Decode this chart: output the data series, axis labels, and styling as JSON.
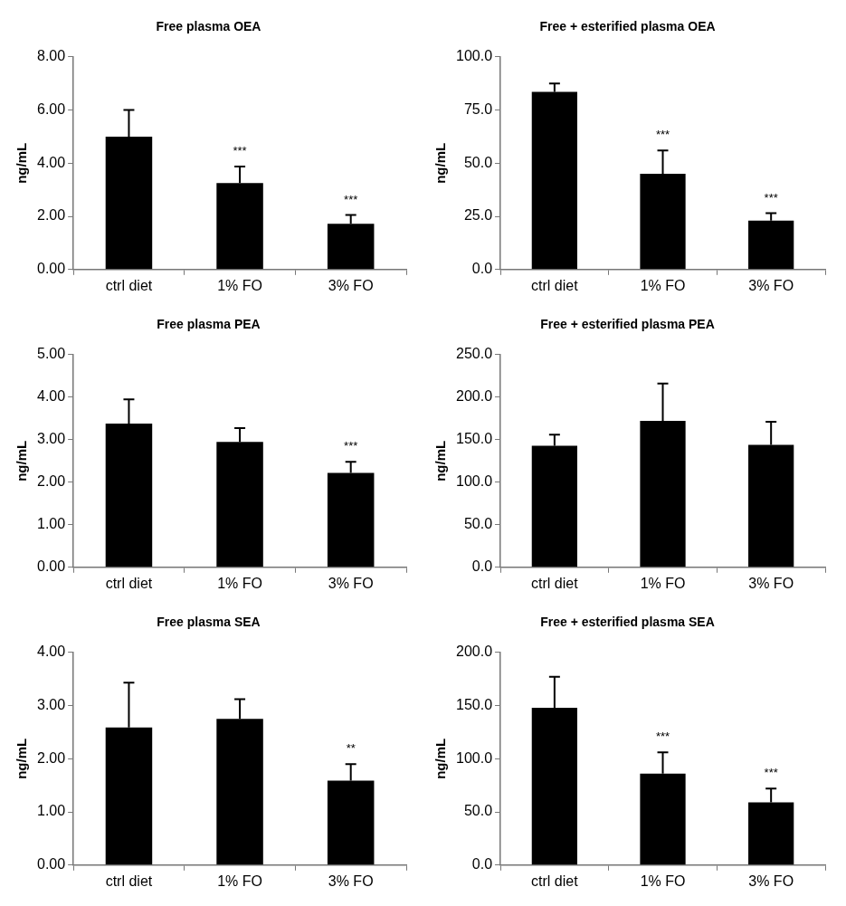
{
  "chart_data": [
    {
      "type": "bar",
      "title": "Free plasma OEA",
      "ylabel": "ng/mL",
      "categories": [
        "ctrl diet",
        "1% FO",
        "3% FO"
      ],
      "values": [
        5.0,
        3.25,
        1.72
      ],
      "errors": [
        [
          5.0,
          6.0
        ],
        [
          3.25,
          3.87
        ],
        [
          1.72,
          2.05
        ]
      ],
      "value_labels": [
        null,
        "***",
        "***"
      ],
      "color": "#000000",
      "ylim": [
        0,
        8
      ],
      "yticks": [
        {
          "value": 0,
          "label": "0.00"
        },
        {
          "value": 2,
          "label": "2.00"
        },
        {
          "value": 4,
          "label": "4.00"
        },
        {
          "value": 6,
          "label": "6.00"
        },
        {
          "value": 8,
          "label": "8.00"
        }
      ],
      "grid": false,
      "legend": false
    },
    {
      "type": "bar",
      "title": "Free + esterified plasma OEA",
      "ylabel": "ng/mL",
      "categories": [
        "ctrl diet",
        "1% FO",
        "3% FO"
      ],
      "values": [
        83.5,
        45,
        23
      ],
      "errors": [
        [
          83.5,
          87.5
        ],
        [
          45,
          56
        ],
        [
          23,
          26.5
        ]
      ],
      "value_labels": [
        null,
        "***",
        "***"
      ],
      "color": "#000000",
      "ylim": [
        0,
        100
      ],
      "yticks": [
        {
          "value": 0,
          "label": "0.0"
        },
        {
          "value": 25,
          "label": "25.0"
        },
        {
          "value": 50,
          "label": "50.0"
        },
        {
          "value": 75,
          "label": "75.0"
        },
        {
          "value": 100,
          "label": "100.0"
        }
      ],
      "grid": false,
      "legend": false
    },
    {
      "type": "bar",
      "title": "Free plasma PEA",
      "ylabel": "ng/mL",
      "categories": [
        "ctrl diet",
        "1% FO",
        "3% FO"
      ],
      "values": [
        3.38,
        2.95,
        2.22
      ],
      "errors": [
        [
          3.38,
          3.95
        ],
        [
          2.95,
          3.27
        ],
        [
          2.22,
          2.48
        ]
      ],
      "value_labels": [
        null,
        null,
        "***"
      ],
      "color": "#000000",
      "ylim": [
        0,
        5
      ],
      "yticks": [
        {
          "value": 0,
          "label": "0.00"
        },
        {
          "value": 1,
          "label": "1.00"
        },
        {
          "value": 2,
          "label": "2.00"
        },
        {
          "value": 3,
          "label": "3.00"
        },
        {
          "value": 4,
          "label": "4.00"
        },
        {
          "value": 5,
          "label": "5.00"
        }
      ],
      "grid": false,
      "legend": false
    },
    {
      "type": "bar",
      "title": "Free + esterified plasma PEA",
      "ylabel": "ng/mL",
      "categories": [
        "ctrl diet",
        "1% FO",
        "3% FO"
      ],
      "values": [
        143,
        172,
        144
      ],
      "errors": [
        [
          143,
          156
        ],
        [
          172,
          216
        ],
        [
          144,
          171
        ]
      ],
      "color": "#000000",
      "ylim": [
        0,
        250
      ],
      "yticks": [
        {
          "value": 0,
          "label": "0.0"
        },
        {
          "value": 50,
          "label": "50.0"
        },
        {
          "value": 100,
          "label": "100.0"
        },
        {
          "value": 150,
          "label": "150.0"
        },
        {
          "value": 200,
          "label": "200.0"
        },
        {
          "value": 250,
          "label": "250.0"
        }
      ],
      "grid": false,
      "legend": false
    },
    {
      "type": "bar",
      "title": "Free plasma SEA",
      "ylabel": "ng/mL",
      "categories": [
        "ctrl diet",
        "1% FO",
        "3% FO"
      ],
      "values": [
        2.59,
        2.75,
        1.59
      ],
      "errors": [
        [
          2.59,
          3.43
        ],
        [
          2.75,
          3.12
        ],
        [
          1.59,
          1.9
        ]
      ],
      "value_labels": [
        null,
        null,
        "**"
      ],
      "color": "#000000",
      "ylim": [
        0,
        4
      ],
      "yticks": [
        {
          "value": 0,
          "label": "0.00"
        },
        {
          "value": 1,
          "label": "1.00"
        },
        {
          "value": 2,
          "label": "2.00"
        },
        {
          "value": 3,
          "label": "3.00"
        },
        {
          "value": 4,
          "label": "4.00"
        }
      ],
      "grid": false,
      "legend": false
    },
    {
      "type": "bar",
      "title": "Free + esterified plasma SEA",
      "ylabel": "ng/mL",
      "categories": [
        "ctrl diet",
        "1% FO",
        "3% FO"
      ],
      "values": [
        148,
        86,
        59
      ],
      "errors": [
        [
          148,
          177
        ],
        [
          86,
          106
        ],
        [
          59,
          72
        ]
      ],
      "value_labels": [
        null,
        "***",
        "***"
      ],
      "color": "#000000",
      "ylim": [
        0,
        200
      ],
      "yticks": [
        {
          "value": 0,
          "label": "0.0"
        },
        {
          "value": 50,
          "label": "50.0"
        },
        {
          "value": 100,
          "label": "100.0"
        },
        {
          "value": 150,
          "label": "150.0"
        },
        {
          "value": 200,
          "label": "200.0"
        }
      ],
      "grid": false,
      "legend": false
    }
  ]
}
